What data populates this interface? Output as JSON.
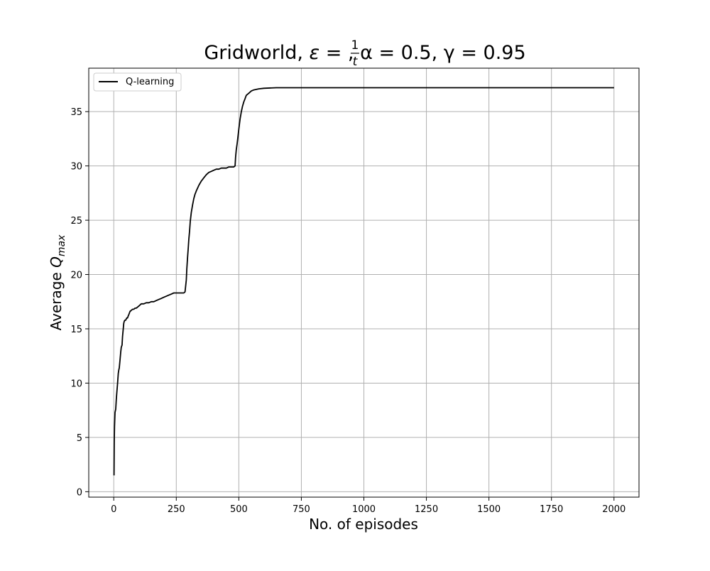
{
  "chart_data": {
    "type": "line",
    "title": {
      "prefix": "Gridworld, ",
      "epsilon_symbol": "ε",
      "epsilon_numerator": "1",
      "epsilon_denominator": "t",
      "alpha_part": ", α = 0.5, ",
      "gamma_part": "γ = 0.95"
    },
    "xlabel": "No. of episodes",
    "ylabel": {
      "main": "Average ",
      "q": "Q",
      "subscript": "max"
    },
    "xlim": [
      -100,
      2100
    ],
    "ylim": [
      -0.5,
      39
    ],
    "xticks": [
      0,
      250,
      500,
      750,
      1000,
      1250,
      1500,
      1750,
      2000
    ],
    "yticks": [
      0,
      5,
      10,
      15,
      20,
      25,
      30,
      35
    ],
    "grid": true,
    "legend_position": "upper-left",
    "series": [
      {
        "name": "Q-learning",
        "color": "#000000",
        "x": [
          1,
          2,
          3,
          5,
          8,
          10,
          12,
          15,
          18,
          20,
          22,
          25,
          28,
          30,
          33,
          35,
          38,
          40,
          42,
          45,
          48,
          50,
          52,
          55,
          58,
          60,
          65,
          70,
          75,
          80,
          85,
          90,
          95,
          100,
          110,
          115,
          120,
          130,
          140,
          150,
          160,
          170,
          180,
          190,
          200,
          210,
          220,
          230,
          240,
          250,
          260,
          270,
          280,
          285,
          290,
          292,
          295,
          298,
          300,
          303,
          306,
          310,
          315,
          320,
          325,
          330,
          340,
          350,
          360,
          370,
          380,
          390,
          400,
          410,
          420,
          430,
          440,
          450,
          460,
          470,
          480,
          485,
          487,
          490,
          493,
          496,
          500,
          505,
          510,
          515,
          520,
          525,
          530,
          540,
          550,
          560,
          580,
          600,
          650,
          700,
          800,
          1000,
          1250,
          1500,
          1750,
          2000
        ],
        "y": [
          1.5,
          4.5,
          6.0,
          7.3,
          7.6,
          8.5,
          9.1,
          9.9,
          10.9,
          11.2,
          11.4,
          12.1,
          12.9,
          13.3,
          13.5,
          14.3,
          15.0,
          15.5,
          15.7,
          15.8,
          15.8,
          15.9,
          16.0,
          16.0,
          16.2,
          16.3,
          16.6,
          16.7,
          16.8,
          16.8,
          16.9,
          16.9,
          17.0,
          17.1,
          17.3,
          17.3,
          17.3,
          17.4,
          17.4,
          17.5,
          17.5,
          17.6,
          17.7,
          17.8,
          17.9,
          18.0,
          18.1,
          18.2,
          18.3,
          18.3,
          18.3,
          18.3,
          18.3,
          18.4,
          19.5,
          20.5,
          21.5,
          22.5,
          23.2,
          24.0,
          24.9,
          25.7,
          26.4,
          27.0,
          27.4,
          27.7,
          28.2,
          28.6,
          28.9,
          29.2,
          29.4,
          29.5,
          29.6,
          29.7,
          29.7,
          29.8,
          29.8,
          29.8,
          29.9,
          29.9,
          29.9,
          30.0,
          30.8,
          31.5,
          32.0,
          32.6,
          33.4,
          34.3,
          35.0,
          35.5,
          35.9,
          36.2,
          36.5,
          36.7,
          36.9,
          37.0,
          37.1,
          37.15,
          37.2,
          37.2,
          37.2,
          37.2,
          37.2,
          37.2,
          37.2,
          37.2
        ]
      }
    ]
  }
}
